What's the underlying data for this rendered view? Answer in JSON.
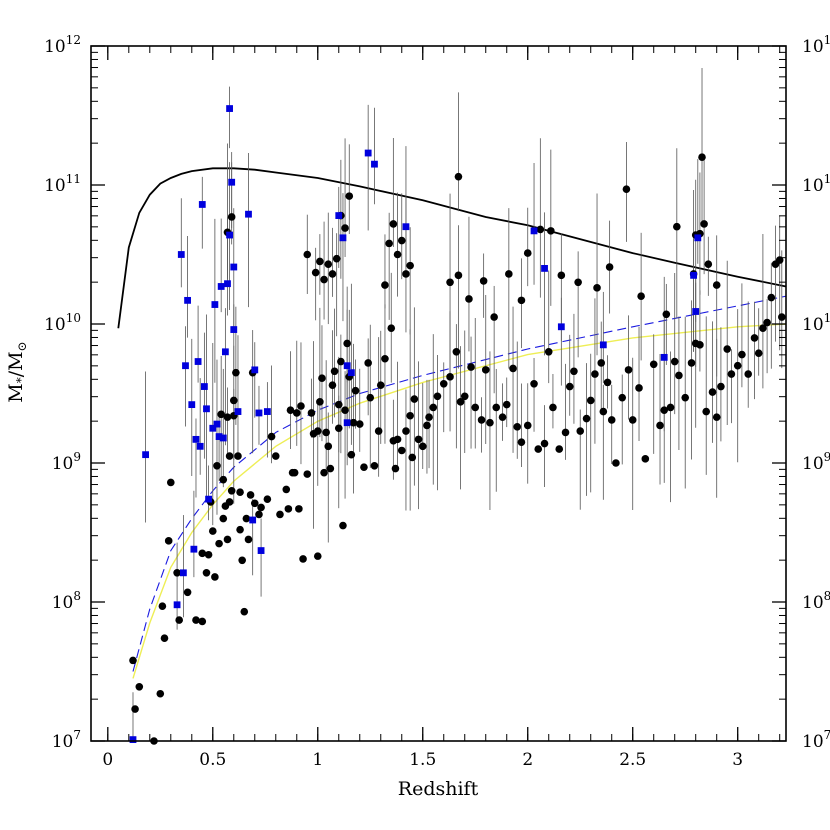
{
  "chart_data": {
    "type": "scatter",
    "xlabel": "Redshift",
    "ylabel": "M*/M⊙",
    "ylabel_main": "M",
    "ylabel_star": "*",
    "ylabel_sep": "/M",
    "ylabel_sub": "⊙",
    "xlim": [
      -0.08,
      3.23
    ],
    "ylim_log10": [
      7,
      12
    ],
    "y_scale": "log",
    "x_ticks": [
      {
        "value": 0,
        "label": "0"
      },
      {
        "value": 0.5,
        "label": "0.5"
      },
      {
        "value": 1,
        "label": "1"
      },
      {
        "value": 1.5,
        "label": "1.5"
      },
      {
        "value": 2,
        "label": "2"
      },
      {
        "value": 2.5,
        "label": "2.5"
      },
      {
        "value": 3,
        "label": "3"
      }
    ],
    "y_ticks": [
      {
        "value": 7,
        "base": "10",
        "exp": "7"
      },
      {
        "value": 8,
        "base": "10",
        "exp": "8"
      },
      {
        "value": 9,
        "base": "10",
        "exp": "9"
      },
      {
        "value": 10,
        "base": "10",
        "exp": "10"
      },
      {
        "value": 11,
        "base": "10",
        "exp": "11"
      },
      {
        "value": 12,
        "base": "10",
        "exp": "12"
      }
    ],
    "colors": {
      "black_points": "#000000",
      "blue_points": "#0000dd",
      "solid_curve": "#000000",
      "blue_dashed": "#1a1ae0",
      "yellow_curve": "#eeee55",
      "error_bars": "#555555"
    },
    "solid_curve": {
      "x": [
        0.05,
        0.1,
        0.15,
        0.2,
        0.25,
        0.3,
        0.35,
        0.4,
        0.5,
        0.6,
        0.7,
        0.8,
        1.0,
        1.2,
        1.5,
        1.8,
        2.0,
        2.2,
        2.5,
        2.7,
        3.0,
        3.23
      ],
      "log_y": [
        9.97,
        10.55,
        10.8,
        10.93,
        11.01,
        11.05,
        11.08,
        11.1,
        11.12,
        11.12,
        11.11,
        11.09,
        11.05,
        10.99,
        10.89,
        10.77,
        10.71,
        10.63,
        10.51,
        10.44,
        10.34,
        10.27
      ]
    },
    "blue_dashed_curve": {
      "x": [
        0.12,
        0.2,
        0.3,
        0.4,
        0.5,
        0.6,
        0.8,
        1.0,
        1.2,
        1.5,
        2.0,
        2.5,
        3.0,
        3.23
      ],
      "log_y": [
        7.5,
        7.95,
        8.37,
        8.6,
        8.8,
        8.97,
        9.22,
        9.38,
        9.5,
        9.63,
        9.82,
        9.98,
        10.13,
        10.2
      ]
    },
    "yellow_curve": {
      "x": [
        0.12,
        0.2,
        0.3,
        0.4,
        0.5,
        0.6,
        0.8,
        1.0,
        1.2,
        1.5,
        2.0,
        2.5,
        3.0,
        3.23
      ],
      "log_y": [
        7.45,
        7.85,
        8.25,
        8.5,
        8.7,
        8.87,
        9.12,
        9.3,
        9.43,
        9.58,
        9.78,
        9.9,
        9.98,
        10.0
      ]
    },
    "series": [
      {
        "marker": "circle",
        "color": "black",
        "points": [
          [
            0.12,
            7.58
          ],
          [
            0.13,
            7.23
          ],
          [
            0.15,
            7.39
          ],
          [
            0.22,
            7.0
          ],
          [
            0.25,
            7.34
          ],
          [
            0.26,
            7.97
          ],
          [
            0.27,
            7.74
          ],
          [
            0.29,
            8.44
          ],
          [
            0.3,
            8.86
          ],
          [
            0.33,
            8.21
          ],
          [
            0.34,
            7.87
          ],
          [
            0.38,
            8.07
          ],
          [
            0.42,
            7.87
          ],
          [
            0.45,
            8.35
          ],
          [
            0.45,
            7.86
          ],
          [
            0.47,
            8.21
          ],
          [
            0.48,
            8.34
          ],
          [
            0.49,
            8.72
          ],
          [
            0.5,
            8.51
          ],
          [
            0.51,
            8.18
          ],
          [
            0.52,
            8.98
          ],
          [
            0.53,
            8.42
          ],
          [
            0.54,
            9.35
          ],
          [
            0.55,
            8.88
          ],
          [
            0.55,
            8.6
          ],
          [
            0.56,
            8.69
          ],
          [
            0.57,
            9.33
          ],
          [
            0.57,
            8.45
          ],
          [
            0.58,
            8.72
          ],
          [
            0.58,
            9.05
          ],
          [
            0.59,
            8.8
          ],
          [
            0.6,
            9.45
          ],
          [
            0.6,
            9.34
          ],
          [
            0.61,
            9.65
          ],
          [
            0.62,
            9.05
          ],
          [
            0.63,
            8.79
          ],
          [
            0.63,
            8.52
          ],
          [
            0.64,
            8.3
          ],
          [
            0.65,
            7.93
          ],
          [
            0.66,
            8.6
          ],
          [
            0.67,
            8.45
          ],
          [
            0.68,
            8.77
          ],
          [
            0.69,
            9.65
          ],
          [
            0.7,
            8.71
          ],
          [
            0.72,
            8.63
          ],
          [
            0.73,
            8.68
          ],
          [
            0.76,
            8.74
          ],
          [
            0.78,
            9.19
          ],
          [
            0.8,
            9.05
          ],
          [
            0.82,
            8.63
          ],
          [
            0.85,
            8.81
          ],
          [
            0.86,
            8.67
          ],
          [
            0.87,
            9.38
          ],
          [
            0.88,
            8.93
          ],
          [
            0.89,
            8.93
          ],
          [
            0.9,
            9.36
          ],
          [
            0.91,
            8.67
          ],
          [
            0.92,
            9.41
          ],
          [
            0.93,
            8.31
          ],
          [
            0.95,
            8.92
          ],
          [
            0.97,
            9.36
          ],
          [
            0.98,
            9.21
          ],
          [
            1.0,
            8.33
          ],
          [
            1.0,
            9.23
          ],
          [
            1.01,
            9.44
          ],
          [
            1.02,
            9.61
          ],
          [
            1.03,
            8.93
          ],
          [
            1.04,
            9.22
          ],
          [
            1.05,
            9.12
          ],
          [
            1.06,
            8.96
          ],
          [
            1.07,
            9.56
          ],
          [
            1.08,
            9.66
          ],
          [
            1.1,
            9.25
          ],
          [
            1.1,
            9.42
          ],
          [
            1.11,
            9.73
          ],
          [
            1.12,
            8.55
          ],
          [
            1.13,
            9.38
          ],
          [
            1.14,
            9.86
          ],
          [
            1.15,
            9.62
          ],
          [
            1.16,
            9.06
          ],
          [
            1.17,
            9.29
          ],
          [
            1.18,
            9.52
          ],
          [
            1.2,
            9.28
          ],
          [
            1.22,
            8.97
          ],
          [
            1.24,
            9.72
          ],
          [
            1.25,
            9.47
          ],
          [
            1.27,
            8.98
          ],
          [
            1.29,
            9.23
          ],
          [
            1.3,
            9.56
          ],
          [
            1.32,
            9.75
          ],
          [
            1.35,
            9.97
          ],
          [
            1.36,
            9.16
          ],
          [
            1.37,
            8.96
          ],
          [
            1.38,
            9.17
          ],
          [
            1.4,
            9.09
          ],
          [
            1.42,
            9.23
          ],
          [
            1.44,
            9.34
          ],
          [
            1.45,
            9.04
          ],
          [
            1.46,
            9.46
          ],
          [
            1.48,
            9.17
          ],
          [
            1.5,
            9.12
          ],
          [
            1.52,
            9.27
          ],
          [
            1.53,
            9.33
          ],
          [
            1.55,
            9.4
          ],
          [
            1.57,
            9.48
          ],
          [
            1.6,
            9.57
          ],
          [
            1.63,
            9.62
          ],
          [
            1.66,
            9.8
          ],
          [
            1.68,
            9.44
          ],
          [
            1.7,
            9.48
          ],
          [
            1.73,
            9.69
          ],
          [
            1.75,
            9.4
          ],
          [
            1.78,
            9.31
          ],
          [
            1.8,
            9.67
          ],
          [
            1.82,
            9.29
          ],
          [
            1.85,
            9.4
          ],
          [
            1.88,
            9.33
          ],
          [
            1.9,
            9.42
          ],
          [
            1.93,
            9.68
          ],
          [
            1.95,
            9.26
          ],
          [
            1.97,
            9.15
          ],
          [
            2.0,
            9.27
          ],
          [
            2.03,
            9.57
          ],
          [
            2.05,
            9.1
          ],
          [
            2.08,
            9.14
          ],
          [
            2.1,
            9.8
          ],
          [
            2.12,
            9.4
          ],
          [
            2.15,
            9.1
          ],
          [
            2.18,
            9.22
          ],
          [
            2.2,
            9.55
          ],
          [
            2.22,
            9.66
          ],
          [
            2.25,
            9.23
          ],
          [
            2.28,
            9.32
          ],
          [
            2.3,
            9.45
          ],
          [
            2.32,
            9.64
          ],
          [
            2.35,
            9.72
          ],
          [
            2.36,
            9.37
          ],
          [
            2.38,
            9.58
          ],
          [
            2.4,
            9.31
          ],
          [
            2.42,
            9.0
          ],
          [
            2.45,
            9.47
          ],
          [
            2.48,
            9.67
          ],
          [
            2.5,
            9.31
          ],
          [
            2.53,
            9.54
          ],
          [
            2.56,
            9.03
          ],
          [
            2.6,
            9.71
          ],
          [
            2.63,
            9.27
          ],
          [
            2.65,
            9.38
          ],
          [
            2.68,
            9.4
          ],
          [
            2.7,
            9.73
          ],
          [
            2.72,
            9.63
          ],
          [
            2.75,
            9.47
          ],
          [
            2.78,
            9.72
          ],
          [
            2.8,
            9.86
          ],
          [
            2.82,
            9.85
          ],
          [
            2.85,
            9.37
          ],
          [
            2.88,
            9.51
          ],
          [
            2.9,
            9.33
          ],
          [
            2.92,
            9.55
          ],
          [
            2.95,
            9.82
          ],
          [
            2.97,
            9.64
          ],
          [
            3.0,
            9.7
          ],
          [
            3.02,
            9.78
          ],
          [
            3.05,
            9.64
          ],
          [
            3.08,
            9.9
          ],
          [
            3.1,
            9.79
          ],
          [
            3.12,
            9.97
          ],
          [
            3.14,
            10.01
          ],
          [
            3.16,
            10.19
          ],
          [
            3.18,
            10.43
          ],
          [
            3.2,
            10.46
          ],
          [
            3.21,
            10.05
          ],
          [
            1.67,
            11.06
          ],
          [
            2.47,
            10.97
          ],
          [
            2.83,
            11.2
          ],
          [
            1.01,
            10.45
          ],
          [
            1.03,
            10.32
          ],
          [
            1.05,
            10.43
          ],
          [
            1.07,
            10.36
          ],
          [
            1.09,
            10.47
          ],
          [
            1.11,
            10.78
          ],
          [
            1.13,
            10.69
          ],
          [
            1.15,
            10.92
          ],
          [
            1.32,
            10.28
          ],
          [
            1.34,
            10.58
          ],
          [
            1.36,
            10.72
          ],
          [
            1.38,
            10.5
          ],
          [
            1.4,
            10.6
          ],
          [
            1.42,
            10.36
          ],
          [
            1.44,
            10.42
          ],
          [
            1.63,
            10.3
          ],
          [
            1.67,
            10.35
          ],
          [
            1.72,
            10.18
          ],
          [
            1.79,
            10.31
          ],
          [
            1.84,
            10.05
          ],
          [
            1.91,
            10.36
          ],
          [
            1.97,
            10.17
          ],
          [
            2.0,
            10.51
          ],
          [
            2.06,
            10.68
          ],
          [
            2.11,
            10.67
          ],
          [
            2.16,
            10.35
          ],
          [
            2.24,
            10.3
          ],
          [
            2.33,
            10.26
          ],
          [
            2.39,
            10.41
          ],
          [
            2.54,
            10.2
          ],
          [
            2.66,
            10.07
          ],
          [
            2.79,
            10.36
          ],
          [
            2.82,
            10.65
          ],
          [
            2.84,
            10.72
          ],
          [
            2.86,
            10.43
          ],
          [
            2.9,
            10.28
          ],
          [
            2.71,
            10.7
          ],
          [
            2.8,
            10.64
          ],
          [
            0.59,
            10.77
          ],
          [
            0.57,
            10.66
          ],
          [
            0.95,
            10.5
          ],
          [
            0.99,
            10.37
          ]
        ]
      },
      {
        "marker": "square",
        "color": "blue",
        "points": [
          [
            0.12,
            7.01
          ],
          [
            0.18,
            9.06
          ],
          [
            0.33,
            7.98
          ],
          [
            0.35,
            10.5
          ],
          [
            0.36,
            8.21
          ],
          [
            0.37,
            9.7
          ],
          [
            0.38,
            10.17
          ],
          [
            0.4,
            9.42
          ],
          [
            0.41,
            8.38
          ],
          [
            0.42,
            9.17
          ],
          [
            0.43,
            9.73
          ],
          [
            0.44,
            9.12
          ],
          [
            0.45,
            10.86
          ],
          [
            0.46,
            9.55
          ],
          [
            0.47,
            9.39
          ],
          [
            0.48,
            8.74
          ],
          [
            0.5,
            9.25
          ],
          [
            0.51,
            10.14
          ],
          [
            0.52,
            9.28
          ],
          [
            0.53,
            9.19
          ],
          [
            0.54,
            10.27
          ],
          [
            0.55,
            9.18
          ],
          [
            0.56,
            9.8
          ],
          [
            0.57,
            10.29
          ],
          [
            0.58,
            10.64
          ],
          [
            0.58,
            11.55
          ],
          [
            0.59,
            11.02
          ],
          [
            0.6,
            9.96
          ],
          [
            0.6,
            10.41
          ],
          [
            0.67,
            10.79
          ],
          [
            0.7,
            9.67
          ],
          [
            0.72,
            9.36
          ],
          [
            0.73,
            8.37
          ],
          [
            0.76,
            9.37
          ],
          [
            1.1,
            10.78
          ],
          [
            1.12,
            10.62
          ],
          [
            1.14,
            9.7
          ],
          [
            1.16,
            9.65
          ],
          [
            1.24,
            11.23
          ],
          [
            1.27,
            11.15
          ],
          [
            1.42,
            10.7
          ],
          [
            2.03,
            10.67
          ],
          [
            2.08,
            10.4
          ],
          [
            2.16,
            9.98
          ],
          [
            2.36,
            9.85
          ],
          [
            2.65,
            9.76
          ],
          [
            2.79,
            10.35
          ],
          [
            2.8,
            10.09
          ],
          [
            2.81,
            10.62
          ],
          [
            1.14,
            9.29
          ],
          [
            0.69,
            8.59
          ],
          [
            0.62,
            9.37
          ]
        ]
      }
    ]
  }
}
